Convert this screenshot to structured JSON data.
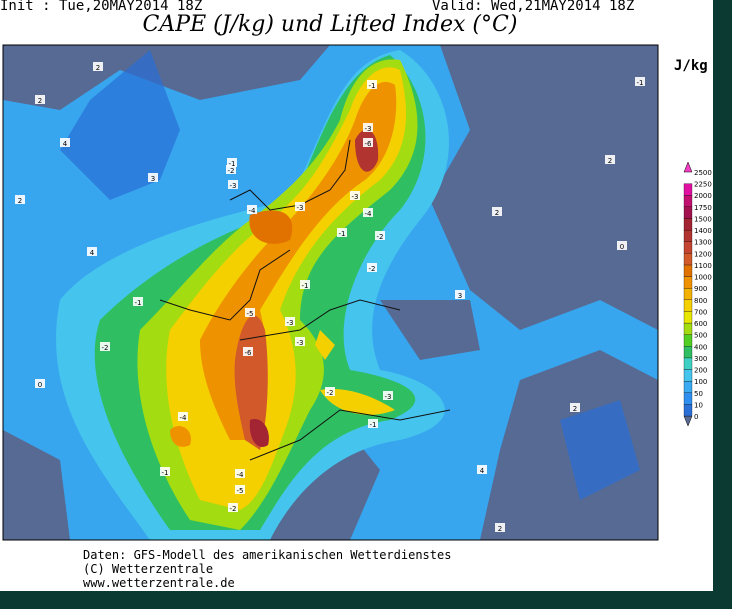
{
  "header": {
    "init": "Init : Tue,20MAY2014 18Z",
    "valid": "Valid: Wed,21MAY2014 18Z",
    "title": "CAPE (J/kg) und Lifted Index (°C)"
  },
  "colorbar": {
    "unit": "J/kg",
    "levels": [
      0,
      10,
      50,
      100,
      200,
      300,
      400,
      500,
      600,
      700,
      800,
      900,
      1000,
      1100,
      1200,
      1300,
      1400,
      1500,
      1750,
      2000,
      2250,
      2500
    ],
    "colors": [
      "#2a6fd6",
      "#2e8ff0",
      "#3aabf3",
      "#45c4ee",
      "#3fd0c4",
      "#2fbf62",
      "#52cf22",
      "#a4dc12",
      "#e6e600",
      "#f5d000",
      "#f4b200",
      "#ef9200",
      "#e27200",
      "#d25a2a",
      "#c44432",
      "#b23430",
      "#a32432",
      "#a2124e",
      "#c21070",
      "#e011a0"
    ]
  },
  "map": {
    "labels": [
      "-1",
      "-3",
      "-6",
      "-3",
      "-4",
      "-2",
      "-1",
      "-3",
      "-4",
      "-3",
      "-2",
      "-1",
      "-2",
      "-1",
      "-3",
      "-5",
      "-6",
      "-3",
      "-1",
      "-2",
      "-4",
      "-2",
      "-3",
      "-1",
      "-5",
      "-4",
      "-2",
      "-1",
      "2",
      "2",
      "4",
      "2",
      "3",
      "4",
      "0",
      "2",
      "2",
      "3",
      "2",
      "0",
      "-1",
      "4",
      "2"
    ]
  },
  "footer": {
    "line1": "Daten: GFS-Modell des amerikanischen Wetterdienstes",
    "line2": "(C) Wetterzentrale",
    "line3": "www.wetterzentrale.de"
  }
}
